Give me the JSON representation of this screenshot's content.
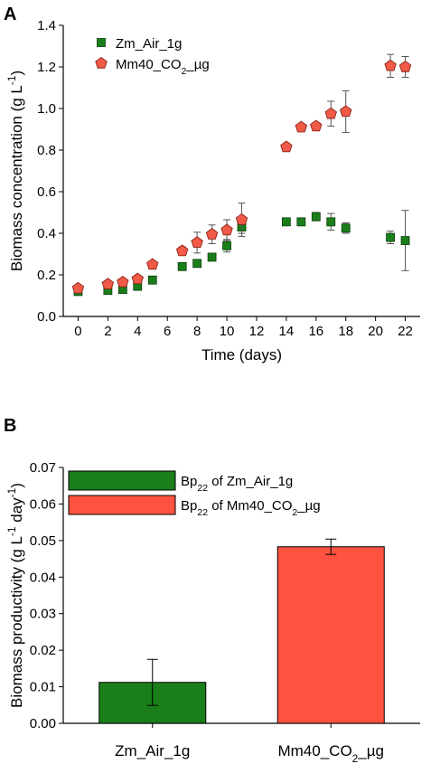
{
  "chart_data": [
    {
      "panel": "A",
      "type": "scatter",
      "xlabel": "Time (days)",
      "ylabel_parts": [
        "Biomass concentration (g L",
        "-1",
        ")"
      ],
      "xlim": [
        -1,
        23
      ],
      "ylim": [
        0,
        1.4
      ],
      "xticks": [
        0,
        2,
        4,
        6,
        8,
        10,
        12,
        14,
        16,
        18,
        20,
        22
      ],
      "yticks": [
        0.0,
        0.2,
        0.4,
        0.6,
        0.8,
        1.0,
        1.2,
        1.4
      ],
      "legend_position": "top-left",
      "series": [
        {
          "name_parts": [
            "Zm_Air_1g"
          ],
          "marker": "square",
          "color": "#1a7f1a",
          "points": [
            {
              "x": 0,
              "y": 0.12,
              "err": 0.01
            },
            {
              "x": 2,
              "y": 0.125,
              "err": 0.01
            },
            {
              "x": 3,
              "y": 0.13,
              "err": 0.01
            },
            {
              "x": 4,
              "y": 0.145,
              "err": 0.01
            },
            {
              "x": 5,
              "y": 0.175,
              "err": 0.01
            },
            {
              "x": 7,
              "y": 0.24,
              "err": 0.01
            },
            {
              "x": 8,
              "y": 0.255,
              "err": 0.015
            },
            {
              "x": 9,
              "y": 0.285,
              "err": 0.015
            },
            {
              "x": 10,
              "y": 0.34,
              "err": 0.03
            },
            {
              "x": 11,
              "y": 0.43,
              "err": 0.03
            },
            {
              "x": 14,
              "y": 0.455,
              "err": 0.01
            },
            {
              "x": 15,
              "y": 0.455,
              "err": 0.01
            },
            {
              "x": 16,
              "y": 0.48,
              "err": 0.02
            },
            {
              "x": 17,
              "y": 0.455,
              "err": 0.04
            },
            {
              "x": 18,
              "y": 0.425,
              "err": 0.025
            },
            {
              "x": 21,
              "y": 0.38,
              "err": 0.03
            },
            {
              "x": 22,
              "y": 0.365,
              "err": 0.145
            }
          ]
        },
        {
          "name_parts": [
            "Mm40_CO",
            "2",
            "_µg"
          ],
          "marker": "pentagon",
          "color": "#f05a47",
          "points": [
            {
              "x": 0,
              "y": 0.135,
              "err": 0.01
            },
            {
              "x": 2,
              "y": 0.155,
              "err": 0.01
            },
            {
              "x": 3,
              "y": 0.165,
              "err": 0.01
            },
            {
              "x": 4,
              "y": 0.18,
              "err": 0.01
            },
            {
              "x": 5,
              "y": 0.25,
              "err": 0.01
            },
            {
              "x": 7,
              "y": 0.315,
              "err": 0.02
            },
            {
              "x": 8,
              "y": 0.355,
              "err": 0.05
            },
            {
              "x": 9,
              "y": 0.395,
              "err": 0.045
            },
            {
              "x": 10,
              "y": 0.415,
              "err": 0.05
            },
            {
              "x": 11,
              "y": 0.465,
              "err": 0.08
            },
            {
              "x": 14,
              "y": 0.815,
              "err": 0.01
            },
            {
              "x": 15,
              "y": 0.91,
              "err": 0.01
            },
            {
              "x": 16,
              "y": 0.915,
              "err": 0.01
            },
            {
              "x": 17,
              "y": 0.975,
              "err": 0.06
            },
            {
              "x": 18,
              "y": 0.985,
              "err": 0.1
            },
            {
              "x": 21,
              "y": 1.205,
              "err": 0.055
            },
            {
              "x": 22,
              "y": 1.2,
              "err": 0.05
            }
          ]
        }
      ]
    },
    {
      "panel": "B",
      "type": "bar",
      "ylabel_parts": [
        "Biomass productivity (g L",
        "-1",
        " day",
        "-1",
        ")"
      ],
      "ylim": [
        0,
        0.07
      ],
      "yticks": [
        0.0,
        0.01,
        0.02,
        0.03,
        0.04,
        0.05,
        0.06,
        0.07
      ],
      "legend_position": "top-left",
      "categories": [
        {
          "parts": [
            "Zm_Air_1g"
          ]
        },
        {
          "parts": [
            "Mm40_CO",
            "2",
            "_µg"
          ]
        }
      ],
      "bars": [
        {
          "value": 0.0112,
          "err": 0.0063,
          "color": "#1a7f1a",
          "legend_parts": [
            "Bp",
            "22",
            " of Zm_Air_1g"
          ]
        },
        {
          "value": 0.0483,
          "err": 0.0021,
          "color": "#ff5240",
          "legend_parts": [
            "Bp",
            "22",
            " of Mm40_CO",
            "2",
            "_µg"
          ]
        }
      ]
    }
  ]
}
